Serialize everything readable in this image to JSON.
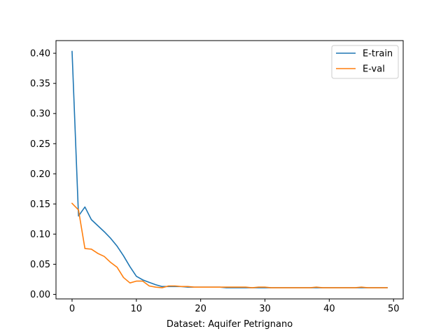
{
  "chart_data": {
    "type": "line",
    "title": "",
    "xlabel": "Dataset: Aquifer Petrignano",
    "ylabel": "",
    "xlim": [
      -2.5,
      51.5
    ],
    "ylim": [
      -0.0075,
      0.421
    ],
    "xticks": [
      0,
      10,
      20,
      30,
      40,
      50
    ],
    "yticks": [
      0.0,
      0.05,
      0.1,
      0.15,
      0.2,
      0.25,
      0.3,
      0.35,
      0.4
    ],
    "xtick_labels": [
      "0",
      "10",
      "20",
      "30",
      "40",
      "50"
    ],
    "ytick_labels": [
      "0.00",
      "0.05",
      "0.10",
      "0.15",
      "0.20",
      "0.25",
      "0.30",
      "0.35",
      "0.40"
    ],
    "grid": false,
    "legend_position": "top-right",
    "x": [
      0,
      1,
      2,
      3,
      4,
      5,
      6,
      7,
      8,
      9,
      10,
      11,
      12,
      13,
      14,
      15,
      16,
      17,
      18,
      19,
      20,
      21,
      22,
      23,
      24,
      25,
      26,
      27,
      28,
      29,
      30,
      31,
      32,
      33,
      34,
      35,
      36,
      37,
      38,
      39,
      40,
      41,
      42,
      43,
      44,
      45,
      46,
      47,
      48,
      49
    ],
    "series": [
      {
        "name": "E-train",
        "color": "#1f77b4",
        "values": [
          0.403,
          0.13,
          0.145,
          0.124,
          0.114,
          0.104,
          0.093,
          0.08,
          0.064,
          0.046,
          0.03,
          0.024,
          0.02,
          0.016,
          0.013,
          0.013,
          0.013,
          0.013,
          0.012,
          0.012,
          0.012,
          0.012,
          0.012,
          0.012,
          0.011,
          0.011,
          0.011,
          0.011,
          0.011,
          0.011,
          0.011,
          0.011,
          0.011,
          0.011,
          0.011,
          0.011,
          0.011,
          0.011,
          0.011,
          0.011,
          0.011,
          0.011,
          0.011,
          0.011,
          0.011,
          0.011,
          0.011,
          0.011,
          0.011,
          0.011
        ]
      },
      {
        "name": "E-val",
        "color": "#ff7f0e",
        "values": [
          0.151,
          0.14,
          0.076,
          0.075,
          0.068,
          0.063,
          0.053,
          0.045,
          0.028,
          0.019,
          0.022,
          0.022,
          0.014,
          0.012,
          0.011,
          0.014,
          0.014,
          0.013,
          0.013,
          0.012,
          0.012,
          0.012,
          0.012,
          0.012,
          0.012,
          0.012,
          0.012,
          0.012,
          0.011,
          0.012,
          0.012,
          0.011,
          0.011,
          0.011,
          0.011,
          0.011,
          0.011,
          0.011,
          0.012,
          0.011,
          0.011,
          0.011,
          0.011,
          0.011,
          0.011,
          0.012,
          0.011,
          0.011,
          0.011,
          0.011
        ]
      }
    ]
  }
}
